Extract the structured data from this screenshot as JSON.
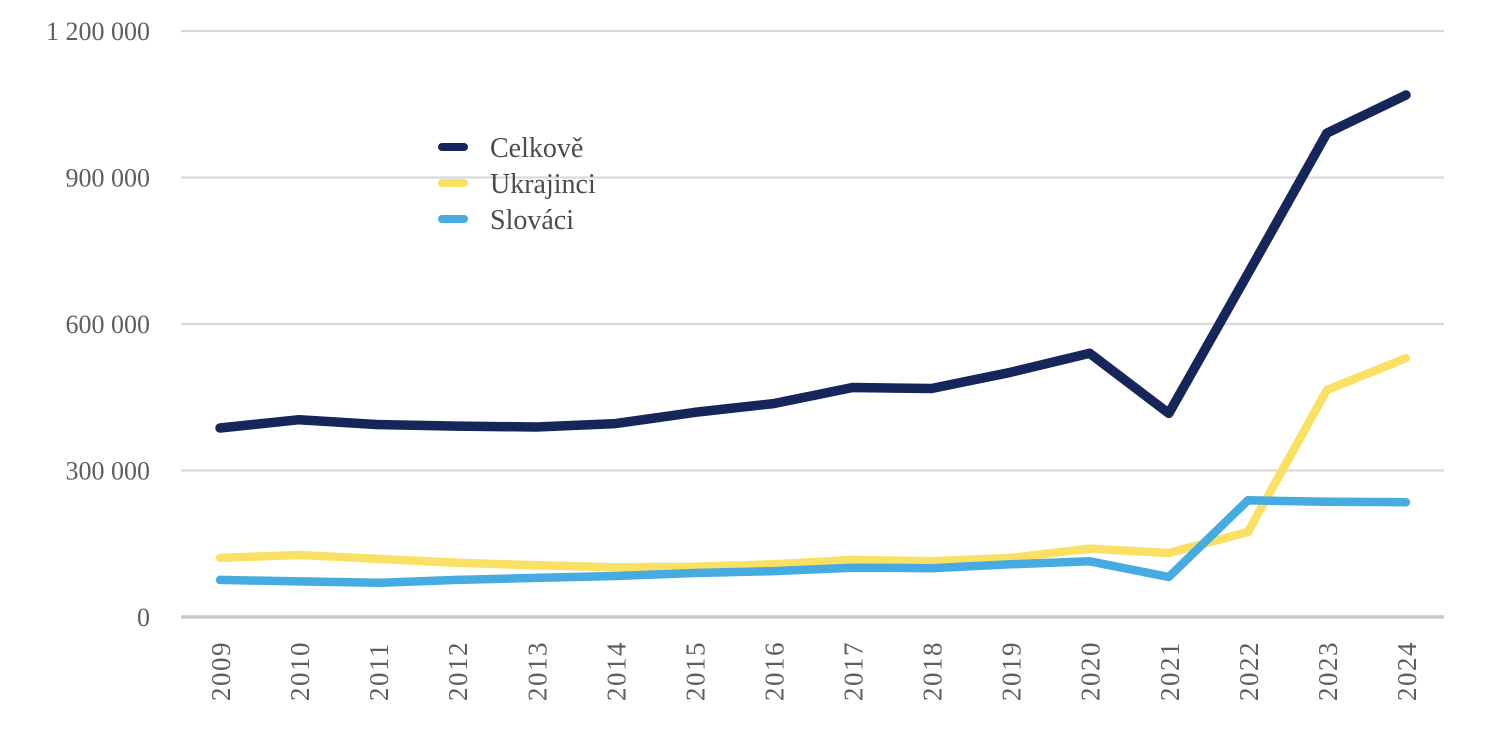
{
  "page": {
    "background_color": "#ffffff"
  },
  "chart_data": {
    "type": "line",
    "title": "",
    "xlabel": "",
    "ylabel": "",
    "x": [
      "2009",
      "2010",
      "2011",
      "2012",
      "2013",
      "2014",
      "2015",
      "2016",
      "2017",
      "2018",
      "2019",
      "2020",
      "2021",
      "2022",
      "2023",
      "2024"
    ],
    "series": [
      {
        "name": "Celkově",
        "color": "#16265a",
        "stroke_width": 9.5,
        "values": [
          387000,
          404000,
          394000,
          391000,
          389000,
          396000,
          419000,
          437000,
          470000,
          468000,
          501000,
          540000,
          417000,
          703000,
          991000,
          1069000
        ]
      },
      {
        "name": "Ukrajinci",
        "color": "#fae163",
        "stroke_width": 8.5,
        "values": [
          121000,
          127000,
          119000,
          111000,
          106000,
          102000,
          103000,
          108000,
          117000,
          114000,
          121000,
          140000,
          131000,
          174000,
          465000,
          530000
        ]
      },
      {
        "name": "Slováci",
        "color": "#45abe0",
        "stroke_width": 8.5,
        "values": [
          76000,
          73000,
          70000,
          76000,
          80000,
          84000,
          90000,
          94000,
          101000,
          100000,
          108000,
          114000,
          82000,
          239000,
          236000,
          235000
        ]
      }
    ],
    "ylim": [
      0,
      1200000
    ],
    "yticks": [
      {
        "value": 0,
        "label": "0"
      },
      {
        "value": 300000,
        "label": "300 000"
      },
      {
        "value": 600000,
        "label": "600 000"
      },
      {
        "value": 900000,
        "label": "900 000"
      },
      {
        "value": 1200000,
        "label": "1 200 000"
      }
    ],
    "grid": "horizontal",
    "grid_color": "#d9d9d9",
    "zero_line_color": "#c9c9c9",
    "tick_label_color": "#5e5e5e",
    "legend_text_color": "#4c4c4c",
    "legend_position": "inside-upper-left",
    "x_tick_rotation": -90
  }
}
